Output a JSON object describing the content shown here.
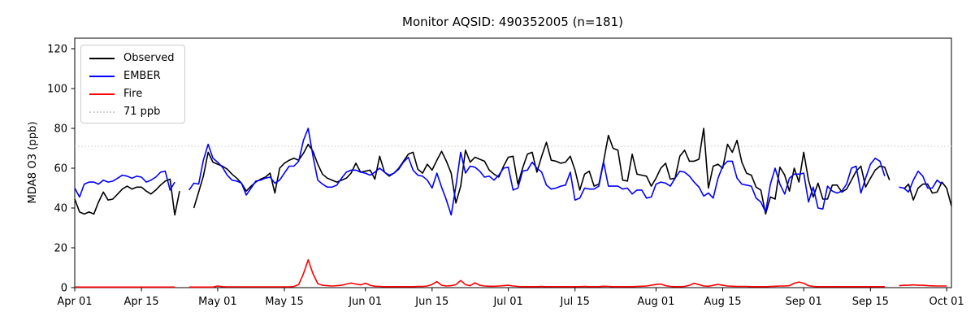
{
  "figure": {
    "title": "Monitor AQSID: 490352005 (n=181)",
    "y_axis_label": "MDA8 O3 (ppb)"
  },
  "legend": {
    "items": [
      {
        "label": "Observed",
        "color": "#000000",
        "style": "solid"
      },
      {
        "label": "EMBER",
        "color": "#0000ff",
        "style": "solid"
      },
      {
        "label": "Fire",
        "color": "#ff0000",
        "style": "solid"
      },
      {
        "label": "71 ppb",
        "color": "#cccccc",
        "style": "dotted"
      }
    ]
  },
  "chart_data": {
    "type": "line",
    "title": "Monitor AQSID: 490352005 (n=181)",
    "xlabel": "",
    "ylabel": "MDA8 O3 (ppb)",
    "x_unit": "daily values, Apr 01 through Oct 01",
    "ylim": [
      0,
      125
    ],
    "y_ticks": [
      0,
      20,
      40,
      60,
      80,
      100,
      120
    ],
    "x_ticks": [
      {
        "day": 0,
        "label": "Apr 01"
      },
      {
        "day": 14,
        "label": "Apr 15"
      },
      {
        "day": 30,
        "label": "May 01"
      },
      {
        "day": 44,
        "label": "May 15"
      },
      {
        "day": 61,
        "label": "Jun 01"
      },
      {
        "day": 75,
        "label": "Jun 15"
      },
      {
        "day": 91,
        "label": "Jul 01"
      },
      {
        "day": 105,
        "label": "Jul 15"
      },
      {
        "day": 122,
        "label": "Aug 01"
      },
      {
        "day": 136,
        "label": "Aug 15"
      },
      {
        "day": 153,
        "label": "Sep 01"
      },
      {
        "day": 167,
        "label": "Sep 15"
      },
      {
        "day": 183,
        "label": "Oct 01"
      }
    ],
    "threshold": {
      "value": 71,
      "label": "71 ppb",
      "color": "#cccccc",
      "style": "dotted"
    },
    "grid": false,
    "legend_position": "upper-left",
    "series": [
      {
        "name": "Observed",
        "color": "#000000",
        "values": [
          44.5,
          38,
          37,
          38,
          37,
          43,
          48,
          44,
          44.5,
          47,
          49.5,
          51,
          49.5,
          50.5,
          50.5,
          48.5,
          47,
          49,
          51.5,
          53.5,
          54.5,
          36.5,
          48.5,
          null,
          null,
          40,
          48,
          56,
          68,
          63,
          62,
          61,
          59.5,
          57,
          55,
          52.5,
          48.5,
          51,
          53,
          54.5,
          55.5,
          57.5,
          47.5,
          60,
          62.5,
          64,
          65,
          64,
          67.5,
          72,
          68.5,
          62,
          57,
          55,
          54,
          53,
          54,
          55,
          57.5,
          62.5,
          58,
          58.5,
          59,
          54.5,
          66,
          58,
          56,
          57.5,
          60,
          63.5,
          67,
          68,
          59.5,
          57.5,
          62,
          59,
          64,
          68.5,
          63.5,
          57.5,
          42.5,
          51,
          69,
          63,
          65.5,
          64.5,
          63.5,
          59,
          57,
          55.5,
          61,
          65.5,
          66,
          52,
          60,
          67,
          68,
          58,
          66,
          73,
          64,
          63.5,
          62.5,
          63,
          66,
          59,
          49,
          57,
          58.5,
          51,
          52,
          63.5,
          76.5,
          70,
          69,
          54,
          53.5,
          67,
          57,
          56.5,
          56,
          51,
          55,
          60,
          62.5,
          54.5,
          55,
          66,
          69,
          63.5,
          63.5,
          64.5,
          80,
          50,
          61,
          62,
          60,
          72,
          68,
          74,
          63,
          57.5,
          56.5,
          50.5,
          49,
          37,
          45.5,
          44.5,
          60.5,
          56.5,
          48.5,
          60,
          53,
          68,
          54,
          45.5,
          52.5,
          44.5,
          44.5,
          51.5,
          51.5,
          48,
          49.5,
          54,
          58.5,
          61,
          50.5,
          55,
          59,
          61,
          60.5,
          54,
          null,
          null,
          49.5,
          52,
          44,
          50,
          52,
          52,
          47.5,
          48,
          53,
          50,
          41
        ]
      },
      {
        "name": "EMBER",
        "color": "#0000ff",
        "values": [
          50,
          45.5,
          52,
          53,
          53,
          52,
          54,
          53,
          53.5,
          55,
          56.5,
          56,
          55,
          56,
          55.5,
          53,
          54,
          55.5,
          58,
          58.5,
          49,
          53,
          null,
          null,
          49,
          52.5,
          52,
          64,
          72,
          65,
          63,
          60.5,
          56.5,
          54,
          53.5,
          52.5,
          46.5,
          50,
          53.5,
          54,
          55,
          55.5,
          52.5,
          54,
          57.5,
          61,
          61,
          63.5,
          74,
          80,
          66,
          54,
          52,
          50.5,
          50.5,
          51.5,
          55,
          58,
          59,
          59,
          58,
          57.5,
          56.5,
          58,
          60,
          58,
          56.5,
          57.5,
          59.5,
          63,
          65.5,
          59,
          56.5,
          56,
          54,
          50,
          57.5,
          50.5,
          44,
          36.5,
          51,
          68,
          57.5,
          61,
          60.5,
          58.5,
          55.5,
          56,
          54,
          56.5,
          60,
          60.5,
          49,
          50,
          58.5,
          59,
          63,
          60,
          58,
          51.5,
          49.5,
          50,
          51,
          51.5,
          58,
          44,
          45,
          50,
          49.5,
          49.5,
          51,
          63,
          51,
          51,
          51,
          49.5,
          50,
          47,
          49,
          49,
          45,
          45.5,
          52,
          53,
          52.5,
          51,
          55,
          58.5,
          58,
          56,
          53,
          50.5,
          46,
          47.5,
          45,
          55,
          61,
          63.5,
          63.5,
          55,
          52,
          51.5,
          51,
          45,
          43,
          38,
          52,
          60,
          52,
          47,
          55,
          57,
          57,
          57.5,
          43,
          50.5,
          40,
          39.5,
          51,
          48.5,
          47.5,
          48.5,
          52,
          60,
          61,
          47.5,
          55,
          62,
          65,
          63.5,
          56,
          null,
          null,
          50.5,
          50,
          48,
          54,
          58.5,
          56,
          50,
          50,
          54,
          52,
          null
        ]
      },
      {
        "name": "Fire",
        "color": "#ff0000",
        "values": [
          0.3,
          0.3,
          0.3,
          0.3,
          0.3,
          0.3,
          0.3,
          0.3,
          0.3,
          0.3,
          0.3,
          0.3,
          0.3,
          0.3,
          0.3,
          0.3,
          0.3,
          0.3,
          0.3,
          0.3,
          0.3,
          0.3,
          null,
          null,
          0.3,
          0.3,
          0.3,
          0.3,
          0.3,
          0.3,
          0.8,
          0.5,
          0.4,
          0.4,
          0.4,
          0.4,
          0.4,
          0.4,
          0.4,
          0.4,
          0.4,
          0.4,
          0.4,
          0.4,
          0.4,
          0.4,
          0.6,
          1.5,
          7,
          14,
          7,
          2,
          1.2,
          1,
          0.8,
          1,
          1.2,
          1.8,
          2.3,
          1.8,
          1.4,
          2.2,
          1.2,
          0.7,
          0.6,
          0.5,
          0.5,
          0.5,
          0.5,
          0.5,
          0.5,
          0.5,
          0.6,
          0.6,
          0.8,
          1.6,
          3,
          1.2,
          0.8,
          1,
          1.5,
          3.6,
          1.5,
          1,
          2.4,
          1.2,
          0.8,
          0.7,
          0.7,
          0.8,
          1,
          1.2,
          0.8,
          0.6,
          0.5,
          0.5,
          0.5,
          0.5,
          0.6,
          0.5,
          0.5,
          0.5,
          0.5,
          0.5,
          0.5,
          0.5,
          0.5,
          0.6,
          0.5,
          0.5,
          0.5,
          0.7,
          0.6,
          0.5,
          0.5,
          0.5,
          0.5,
          0.5,
          0.6,
          0.7,
          0.8,
          1.2,
          1.6,
          1.8,
          1,
          0.6,
          0.5,
          0.5,
          0.6,
          1.2,
          2.2,
          1.5,
          0.8,
          0.7,
          1.2,
          1.6,
          1.2,
          0.8,
          0.7,
          0.6,
          0.6,
          0.6,
          0.5,
          0.5,
          0.5,
          0.5,
          0.6,
          0.7,
          0.8,
          0.8,
          1,
          2.2,
          2.8,
          2.2,
          1,
          0.6,
          0.5,
          0.5,
          0.5,
          0.5,
          0.5,
          0.5,
          0.5,
          0.5,
          0.5,
          0.5,
          0.5,
          0.5,
          0.5,
          0.5,
          0.5,
          null,
          null,
          1,
          1.2,
          1.2,
          1.4,
          1.2,
          1.2,
          1,
          0.9,
          0.8,
          0.8,
          0.8
        ]
      }
    ]
  }
}
